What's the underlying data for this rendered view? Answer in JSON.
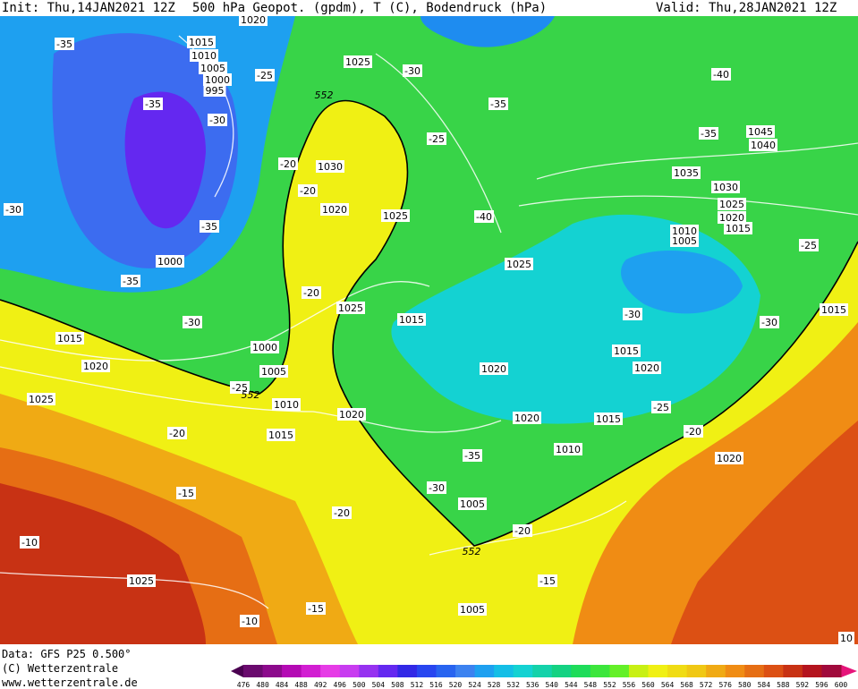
{
  "header": {
    "init": "Init: Thu,14JAN2021 12Z",
    "title": "500 hPa Geopot. (gpdm), T (C), Bodendruck (hPa)",
    "valid": "Valid: Thu,28JAN2021 12Z"
  },
  "footer": {
    "data": "Data: GFS P25 0.500°",
    "copyright": "(C) Wetterzentrale",
    "url": "www.wetterzentrale.de"
  },
  "colorbar": {
    "labels": [
      "476",
      "480",
      "484",
      "488",
      "492",
      "496",
      "500",
      "504",
      "508",
      "512",
      "516",
      "520",
      "524",
      "528",
      "532",
      "536",
      "540",
      "544",
      "548",
      "552",
      "556",
      "560",
      "564",
      "568",
      "572",
      "576",
      "580",
      "584",
      "588",
      "592",
      "596",
      "600"
    ],
    "colors": [
      "#6a0a6e",
      "#8c0a8c",
      "#b40ab4",
      "#d21ed2",
      "#e63ce6",
      "#c83cf0",
      "#9632f0",
      "#6428f0",
      "#3228e6",
      "#2846f0",
      "#2864f0",
      "#3c82f0",
      "#1ea0f0",
      "#14bee6",
      "#14d2d2",
      "#14d2aa",
      "#14d282",
      "#1edc5a",
      "#3ce63c",
      "#64f028",
      "#c8f014",
      "#f0f014",
      "#f0dc14",
      "#f0c814",
      "#f0aa14",
      "#f08c14",
      "#e66e14",
      "#dc5014",
      "#c83214",
      "#b4141e",
      "#a00a3c"
    ]
  },
  "pressure_labels": [
    "1020",
    "1015",
    "1010",
    "1005",
    "1000",
    "995",
    "1025",
    "1030",
    "1020",
    "1025",
    "1000",
    "1025",
    "1025",
    "1015",
    "1015",
    "1020",
    "1000",
    "1005",
    "1010",
    "1015",
    "1020",
    "1025",
    "1020",
    "1020",
    "1015",
    "1015",
    "1020",
    "1010",
    "1005",
    "1005",
    "1025",
    "1020",
    "1045",
    "1040",
    "1035",
    "1030",
    "1025",
    "1020",
    "1015",
    "1010",
    "1005",
    "1015"
  ],
  "temperature_labels": [
    "-35",
    "-35",
    "-30",
    "-25",
    "-30",
    "-35",
    "-25",
    "-20",
    "-20",
    "-30",
    "-35",
    "-40",
    "-40",
    "-35",
    "-35",
    "-20",
    "-30",
    "-30",
    "-30",
    "-25",
    "-25",
    "-25",
    "-20",
    "-20",
    "-15",
    "-35",
    "-30",
    "-20",
    "-20",
    "-15",
    "-10",
    "-10",
    "-15",
    "10"
  ],
  "height_labels": [
    "552",
    "552",
    "552"
  ]
}
